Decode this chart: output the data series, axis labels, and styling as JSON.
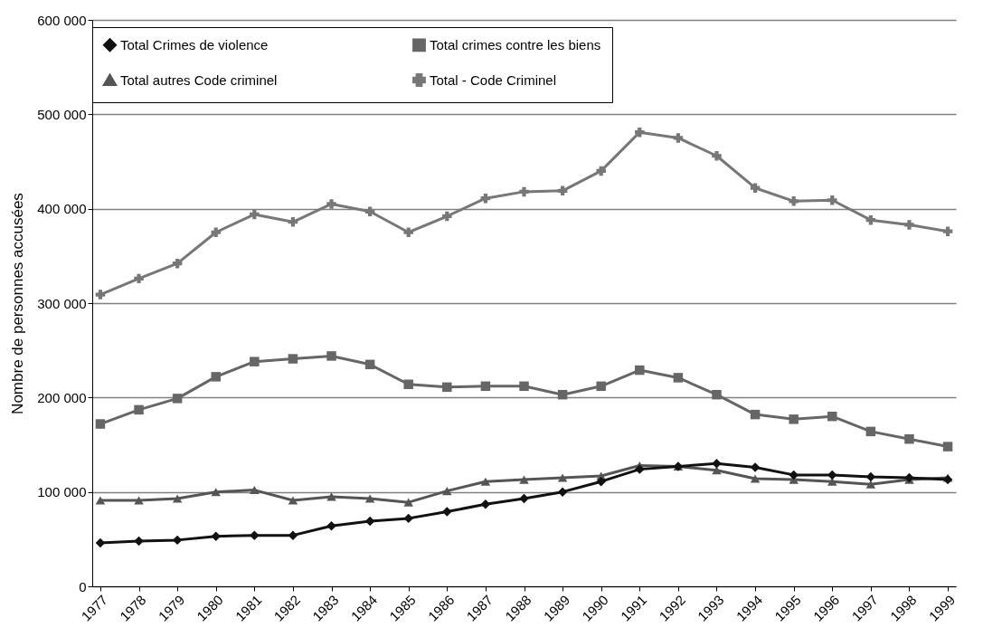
{
  "chart_data": {
    "type": "line",
    "ylabel": "Nombre de personnes accusées",
    "categories": [
      "1977",
      "1978",
      "1979",
      "1980",
      "1981",
      "1982",
      "1983",
      "1984",
      "1985",
      "1986",
      "1987",
      "1988",
      "1989",
      "1990",
      "1991",
      "1992",
      "1993",
      "1994",
      "1995",
      "1996",
      "1997",
      "1998",
      "1999"
    ],
    "series": [
      {
        "name": "Total  Crimes de violence",
        "color": "#111111",
        "marker": "diamond",
        "values": [
          46000,
          48000,
          49000,
          53000,
          54000,
          54000,
          64000,
          69000,
          72000,
          79000,
          87000,
          93000,
          100000,
          111000,
          124000,
          127000,
          130000,
          126000,
          118000,
          118000,
          116000,
          115000,
          113000
        ]
      },
      {
        "name": "Total crimes contre les biens",
        "color": "#666666",
        "marker": "square",
        "values": [
          172000,
          187000,
          199000,
          222000,
          238000,
          241000,
          244000,
          235000,
          214000,
          211000,
          212000,
          212000,
          203000,
          212000,
          229000,
          221000,
          203000,
          182000,
          177000,
          180000,
          164000,
          156000,
          148000
        ]
      },
      {
        "name": "Total  autres Code criminel",
        "color": "#555555",
        "marker": "triangle",
        "values": [
          91000,
          91000,
          93000,
          100000,
          102000,
          91000,
          95000,
          93000,
          89000,
          101000,
          111000,
          113000,
          115000,
          117000,
          128000,
          127000,
          123000,
          114000,
          113000,
          111000,
          108000,
          113000,
          115000
        ]
      },
      {
        "name": "Total - Code Criminel",
        "color": "#777777",
        "marker": "cross",
        "values": [
          309000,
          326000,
          342000,
          375000,
          394000,
          386000,
          405000,
          397000,
          375000,
          392000,
          411000,
          418000,
          419000,
          440000,
          481000,
          475000,
          456000,
          422000,
          408000,
          409000,
          388000,
          383000,
          376000
        ]
      }
    ],
    "ylim": [
      0,
      600000
    ],
    "yticks": [
      0,
      {
        "value": 100000,
        "label": "100 000"
      },
      {
        "value": 200000,
        "label": "200 000"
      },
      {
        "value": 300000,
        "label": "300 000"
      },
      {
        "value": 400000,
        "label": "400 000"
      },
      {
        "value": 500000,
        "label": "500 000"
      },
      {
        "value": 600000,
        "label": "600 000"
      }
    ],
    "grid": "y",
    "legend": "top",
    "line_style": "solid"
  }
}
